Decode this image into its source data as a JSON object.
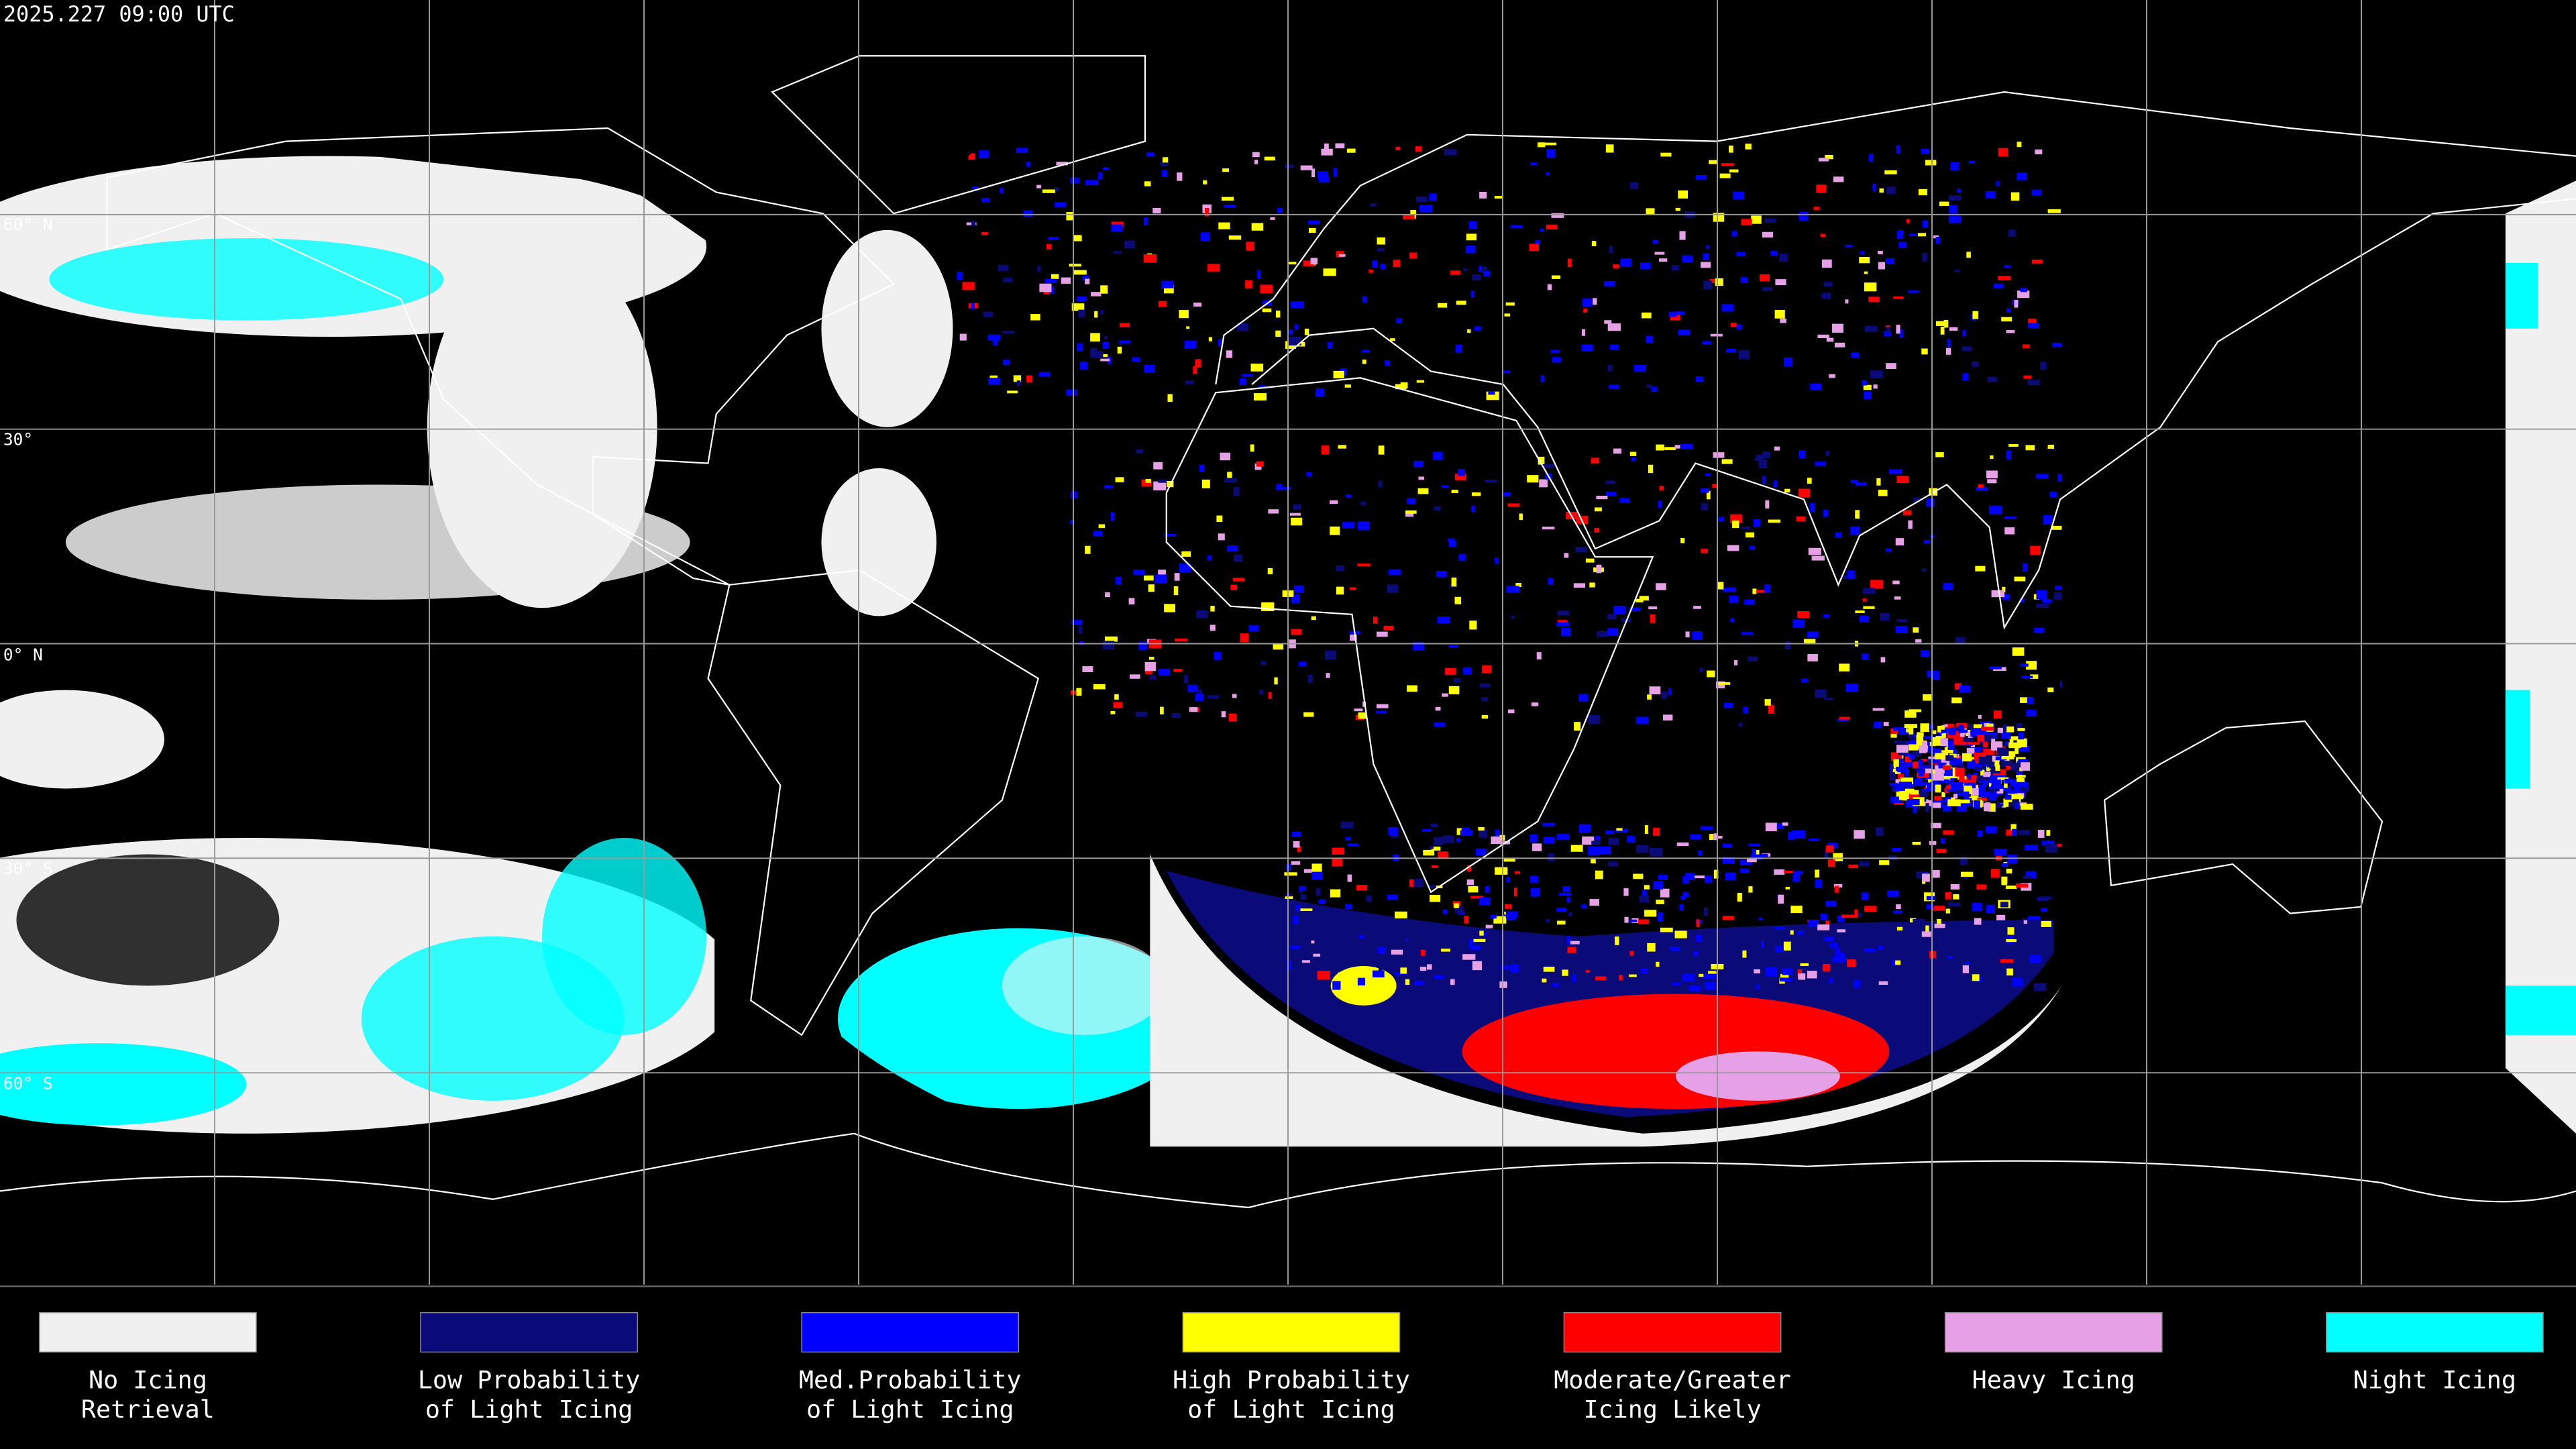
{
  "header": {
    "title": "2025.227 09:00 UTC"
  },
  "map": {
    "lat_labels": [
      "60° N",
      "30°",
      "0° N",
      "30° S",
      "60° S"
    ]
  },
  "legend": {
    "items": [
      {
        "lines": [
          "No Icing",
          "Retrieval"
        ],
        "color": "#f0f0f0"
      },
      {
        "lines": [
          "Low Probability",
          "of Light Icing"
        ],
        "color": "#0a0a78"
      },
      {
        "lines": [
          "Med.Probability",
          "of Light Icing"
        ],
        "color": "#0000ff"
      },
      {
        "lines": [
          "High Probability",
          "of Light Icing"
        ],
        "color": "#ffff00"
      },
      {
        "lines": [
          "Moderate/Greater",
          "Icing Likely"
        ],
        "color": "#ff0000"
      },
      {
        "lines": [
          "Heavy Icing"
        ],
        "color": "#e6a0e6"
      },
      {
        "lines": [
          "Night Icing"
        ],
        "color": "#00ffff"
      }
    ]
  }
}
